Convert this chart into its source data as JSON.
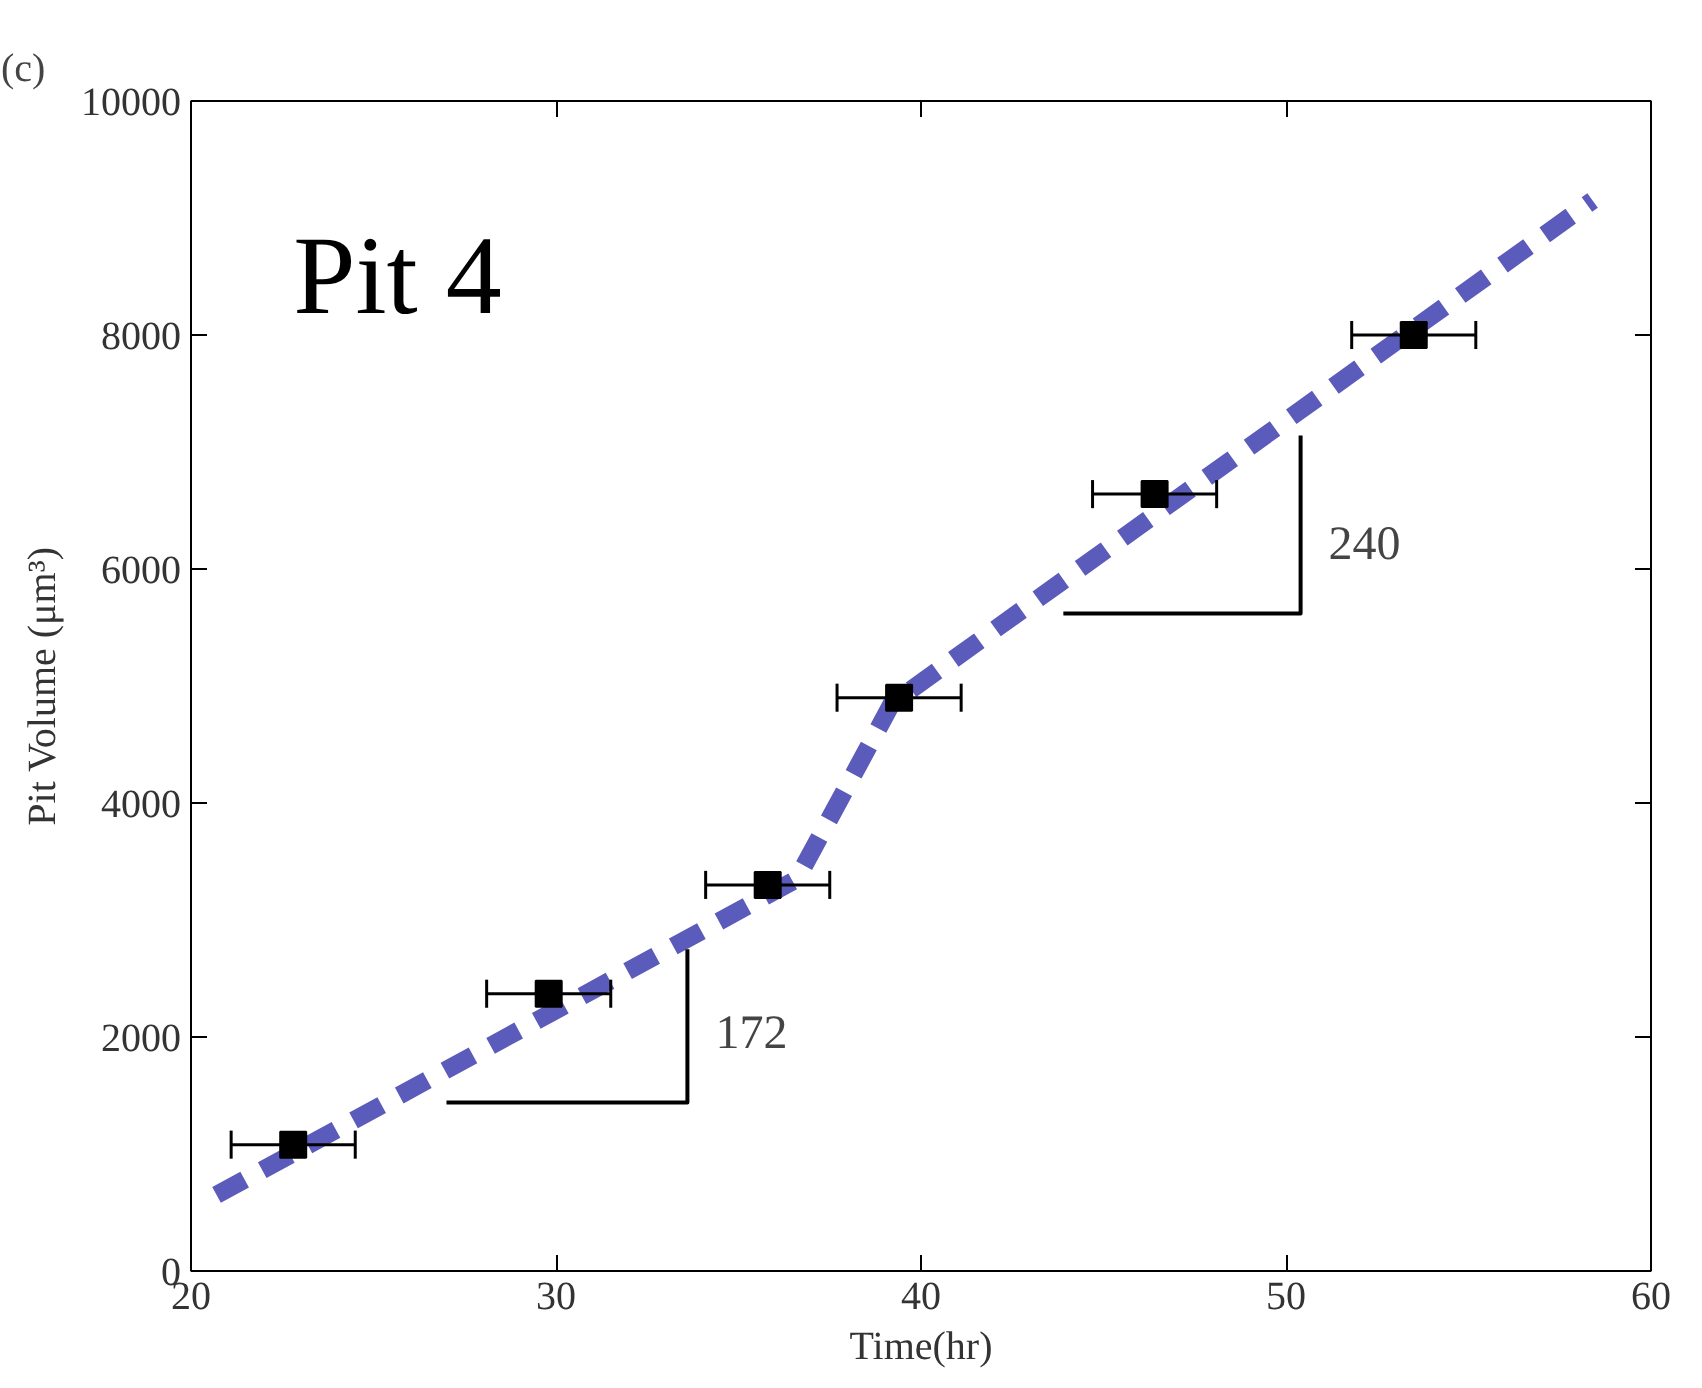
{
  "chart_data": {
    "type": "scatter",
    "title": "(c)",
    "xlabel": "Time(hr)",
    "ylabel": "Pit Volume (μm³)",
    "xlim": [
      20,
      60
    ],
    "xticks": [
      20,
      30,
      40,
      50,
      60
    ],
    "ylim": [
      0,
      10000
    ],
    "yticks": [
      0,
      2000,
      4000,
      6000,
      8000,
      10000
    ],
    "grid": false,
    "series": [
      {
        "type": "line",
        "color": "#5b5bbb",
        "line_style": "dashed",
        "marker": "none",
        "x": [
          20.7,
          36.6,
          39.2,
          58.4
        ],
        "values": [
          650,
          3350,
          4850,
          9150
        ]
      },
      {
        "type": "line",
        "color": "#000000",
        "line_style": "solid",
        "marker": "none",
        "x": [
          27.0,
          33.6,
          33.6
        ],
        "values": [
          1440,
          1440,
          2750
        ]
      },
      {
        "type": "line",
        "color": "#000000",
        "line_style": "solid",
        "marker": "none",
        "x": [
          43.9,
          50.4,
          50.4
        ],
        "values": [
          5620,
          5620,
          7140
        ]
      },
      {
        "color": "#000000",
        "marker": "square",
        "x": [
          22.8,
          29.8,
          35.8,
          39.4,
          46.4,
          53.5
        ],
        "values": [
          1080,
          2370,
          3300,
          4900,
          6640,
          8000
        ],
        "xerrors": [
          1.7,
          1.7,
          1.7,
          1.7,
          1.7,
          1.7
        ]
      }
    ],
    "annotations": [
      "Pit 4",
      "172",
      "240"
    ]
  }
}
